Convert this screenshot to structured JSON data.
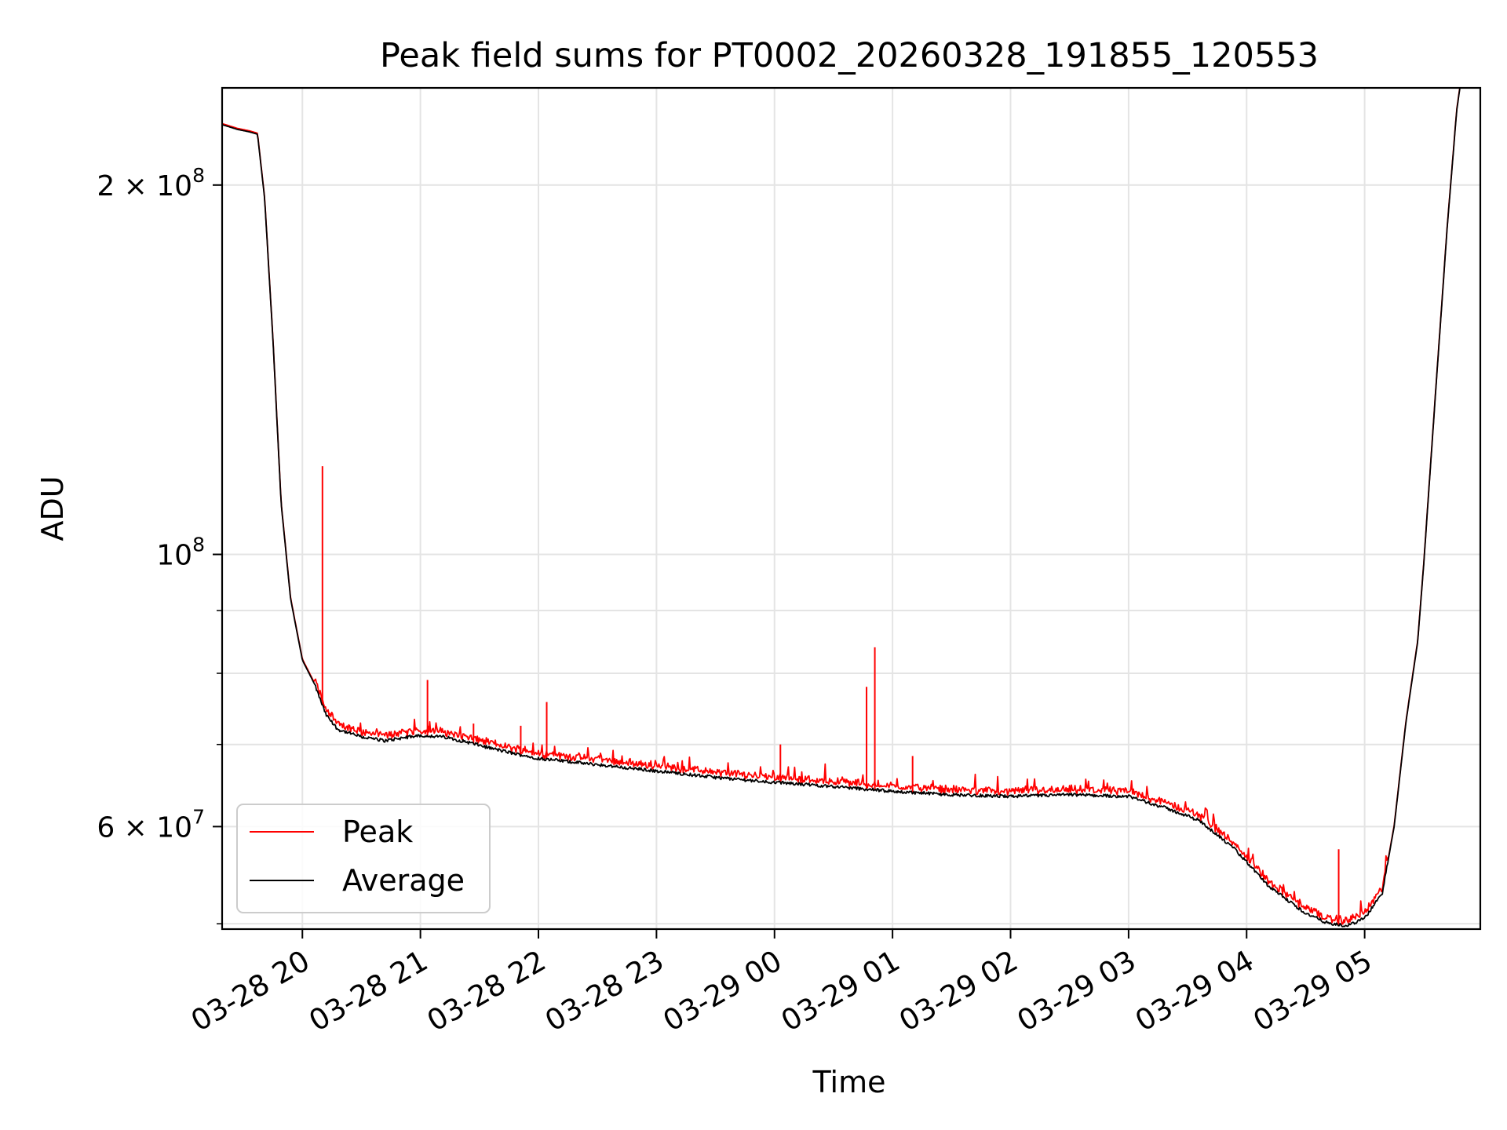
{
  "chart_data": {
    "type": "line",
    "title": "Peak field sums for PT0002_20260328_191855_120553",
    "xlabel": "Time",
    "ylabel": "ADU",
    "yscale": "log",
    "grid": true,
    "legend_position": "lower-left",
    "xlim_hours": [
      19.32,
      29.98
    ],
    "ylim": [
      49500000,
      240000000
    ],
    "x_ticks": [
      {
        "hours": 20,
        "label": "03-28 20"
      },
      {
        "hours": 21,
        "label": "03-28 21"
      },
      {
        "hours": 22,
        "label": "03-28 22"
      },
      {
        "hours": 23,
        "label": "03-28 23"
      },
      {
        "hours": 24,
        "label": "03-29 00"
      },
      {
        "hours": 25,
        "label": "03-29 01"
      },
      {
        "hours": 26,
        "label": "03-29 02"
      },
      {
        "hours": 27,
        "label": "03-29 03"
      },
      {
        "hours": 28,
        "label": "03-29 04"
      },
      {
        "hours": 29,
        "label": "03-29 05"
      }
    ],
    "y_major_ticks": [
      {
        "value": 200000000,
        "mantissa": "2",
        "exponent": "8"
      },
      {
        "value": 100000000,
        "mantissa": "",
        "exponent": "8"
      },
      {
        "value": 60000000,
        "mantissa": "6",
        "exponent": "7"
      }
    ],
    "y_minor_ticks": [
      50000000,
      70000000,
      80000000,
      90000000
    ],
    "series": [
      {
        "name": "Peak",
        "color": "#ff0000",
        "spikes": [
          {
            "hours": 20.17,
            "value": 118000000
          },
          {
            "hours": 21.06,
            "value": 79000000
          },
          {
            "hours": 21.45,
            "value": 72800000
          },
          {
            "hours": 21.85,
            "value": 72500000
          },
          {
            "hours": 22.07,
            "value": 75800000
          },
          {
            "hours": 24.05,
            "value": 70000000
          },
          {
            "hours": 24.78,
            "value": 78000000
          },
          {
            "hours": 24.85,
            "value": 84000000
          },
          {
            "hours": 25.17,
            "value": 68500000
          },
          {
            "hours": 28.78,
            "value": 57500000
          }
        ]
      },
      {
        "name": "Average",
        "color": "#000000",
        "points": [
          [
            19.32,
            224000000
          ],
          [
            19.45,
            222000000
          ],
          [
            19.55,
            221000000
          ],
          [
            19.62,
            220000000
          ],
          [
            19.68,
            195000000
          ],
          [
            19.75,
            150000000
          ],
          [
            19.82,
            110000000
          ],
          [
            19.9,
            92000000
          ],
          [
            20.0,
            82000000
          ],
          [
            20.1,
            78500000
          ],
          [
            20.2,
            74000000
          ],
          [
            20.3,
            72000000
          ],
          [
            20.5,
            71000000
          ],
          [
            20.7,
            70500000
          ],
          [
            20.9,
            71000000
          ],
          [
            21.0,
            71200000
          ],
          [
            21.2,
            71000000
          ],
          [
            21.4,
            70300000
          ],
          [
            21.6,
            69500000
          ],
          [
            21.8,
            68800000
          ],
          [
            22.0,
            68200000
          ],
          [
            22.5,
            67400000
          ],
          [
            23.0,
            66600000
          ],
          [
            23.5,
            65800000
          ],
          [
            24.0,
            65200000
          ],
          [
            24.5,
            64700000
          ],
          [
            25.0,
            64100000
          ],
          [
            25.5,
            63700000
          ],
          [
            26.0,
            63500000
          ],
          [
            26.5,
            63700000
          ],
          [
            27.0,
            63500000
          ],
          [
            27.3,
            62200000
          ],
          [
            27.6,
            60700000
          ],
          [
            27.9,
            57500000
          ],
          [
            28.2,
            53500000
          ],
          [
            28.5,
            51000000
          ],
          [
            28.7,
            50000000
          ],
          [
            28.85,
            49800000
          ],
          [
            29.0,
            50500000
          ],
          [
            29.15,
            53000000
          ],
          [
            29.25,
            60000000
          ],
          [
            29.35,
            73000000
          ],
          [
            29.45,
            85000000
          ],
          [
            29.5,
            98000000
          ],
          [
            29.6,
            135000000
          ],
          [
            29.7,
            185000000
          ],
          [
            29.78,
            230000000
          ],
          [
            29.82,
            245000000
          ]
        ]
      }
    ]
  }
}
